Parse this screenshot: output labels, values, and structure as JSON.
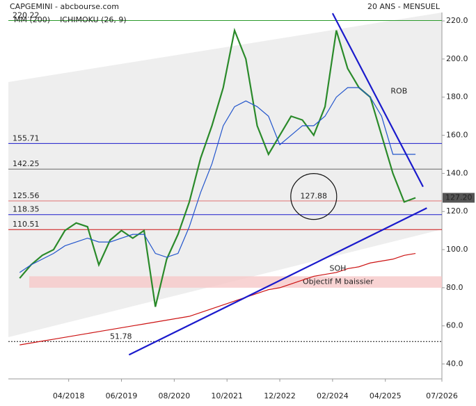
{
  "chart_data": {
    "type": "line",
    "title": "CAPGEMINI - abcbourse.com",
    "subtitle": "20 ANS - MENSUEL",
    "x": [
      "2017-03",
      "2017-06",
      "2017-09",
      "2017-12",
      "2018-03",
      "2018-06",
      "2018-09",
      "2018-12",
      "2019-03",
      "2019-06",
      "2019-09",
      "2019-12",
      "2020-03",
      "2020-06",
      "2020-09",
      "2020-12",
      "2021-03",
      "2021-06",
      "2021-09",
      "2021-12",
      "2022-03",
      "2022-06",
      "2022-09",
      "2022-12",
      "2023-03",
      "2023-06",
      "2023-09",
      "2023-12",
      "2024-03",
      "2024-06",
      "2024-09",
      "2024-12",
      "2025-03",
      "2025-06",
      "2025-09",
      "2025-12"
    ],
    "series": [
      {
        "color": "#2a8a2a",
        "values": [
          85,
          92,
          97,
          100,
          110,
          114,
          112,
          92,
          105,
          110,
          106,
          110,
          70,
          95,
          108,
          125,
          148,
          165,
          185,
          215,
          200,
          165,
          150,
          160,
          170,
          168,
          160,
          175,
          215,
          195,
          185,
          180,
          160,
          140,
          125,
          127.2
        ]
      },
      {
        "name": "MM (200)",
        "color": "#cc1111",
        "values": [
          50,
          51,
          52,
          53,
          54,
          55,
          56,
          57,
          58,
          59,
          60,
          61,
          62,
          63,
          64,
          65,
          67,
          69,
          71,
          73,
          75,
          77,
          79,
          80,
          82,
          84,
          86,
          87,
          88,
          90,
          91,
          93,
          94,
          95,
          97,
          98
        ]
      },
      {
        "name": "ICHIMOKU (26, 9)",
        "color": "#2255cc",
        "values": [
          88,
          92,
          95,
          98,
          102,
          104,
          106,
          104,
          104,
          106,
          108,
          108,
          98,
          96,
          98,
          112,
          130,
          145,
          165,
          175,
          178,
          175,
          170,
          155,
          160,
          165,
          165,
          170,
          180,
          185,
          185,
          180,
          170,
          150,
          150,
          150
        ]
      }
    ],
    "xlim": [
      "2016-12",
      "2026-07"
    ],
    "xticks": [
      {
        "value": "2018-04",
        "label": "04/2018"
      },
      {
        "value": "2019-06",
        "label": "06/2019"
      },
      {
        "value": "2020-08",
        "label": "08/2020"
      },
      {
        "value": "2021-10",
        "label": "10/2021"
      },
      {
        "value": "2022-12",
        "label": "12/2022"
      },
      {
        "value": "2024-02",
        "label": "02/2024"
      },
      {
        "value": "2025-04",
        "label": "04/2025"
      },
      {
        "value": "2026-07",
        "label": "07/2026"
      }
    ],
    "ylim": [
      34,
      224.4
    ],
    "yticks": [
      {
        "value": 40,
        "label": "40.0"
      },
      {
        "value": 60,
        "label": "60.0"
      },
      {
        "value": 80,
        "label": "80.0"
      },
      {
        "value": 100,
        "label": "100.0"
      },
      {
        "value": 120,
        "label": "120.0"
      },
      {
        "value": 140,
        "label": "140.0"
      },
      {
        "value": 160,
        "label": "160.0"
      },
      {
        "value": 180,
        "label": "180.0"
      },
      {
        "value": 200,
        "label": "200.0"
      },
      {
        "value": 220,
        "label": "220.0"
      }
    ],
    "levels": [
      {
        "value": 220.22,
        "color": "#2a9a2a"
      },
      {
        "value": 155.71,
        "color": "#1a1acc"
      },
      {
        "value": 142.25,
        "color": "#666666"
      },
      {
        "value": 125.56,
        "color": "#e07070"
      },
      {
        "value": 118.35,
        "color": "#1a1acc"
      },
      {
        "value": 110.51,
        "color": "#cc1111"
      },
      {
        "value": 51.78,
        "color": "#111111",
        "dashed": true
      }
    ],
    "last_price": {
      "value": 127.2,
      "label": "127.20"
    },
    "target_zone": {
      "label": "Objectif M baissier",
      "range": [
        80,
        86
      ],
      "color": "#f6c8c8"
    },
    "trendlines": [
      {
        "label": "ROB",
        "x": [
          "2024-02",
          "2026-02"
        ],
        "y": [
          224,
          133
        ],
        "color": "#1a1acc"
      },
      {
        "label": "SOH",
        "x": [
          "2019-08",
          "2026-03"
        ],
        "y": [
          44.8,
          121.8
        ],
        "color": "#1a1acc"
      }
    ],
    "circle_note": {
      "x": "2023-09",
      "value": 127.88
    }
  }
}
